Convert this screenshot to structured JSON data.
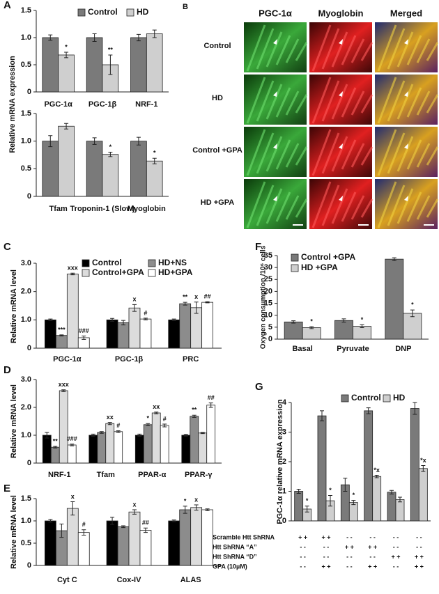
{
  "chart_data": [
    {
      "type": "bar",
      "label": "A",
      "ylabel": "Relative mRNA expression",
      "legend": "upper center",
      "categories": [
        "PGC-1α",
        "PGC-1β",
        "NRF-1"
      ],
      "series": [
        {
          "name": "Control",
          "color": "#7a7a7a",
          "values": [
            1.0,
            1.0,
            1.0
          ],
          "errors": [
            0.05,
            0.07,
            0.06
          ],
          "annotations": [
            null,
            null,
            null
          ]
        },
        {
          "name": "HD",
          "color": "#cfcfcf",
          "values": [
            0.68,
            0.5,
            1.07
          ],
          "errors": [
            0.05,
            0.18,
            0.07
          ],
          "annotations": [
            "*",
            "**",
            null
          ]
        }
      ],
      "ylim": [
        0,
        1.5
      ],
      "yticks": [
        0,
        0.5,
        {
          "value": 1,
          "label": "1.0"
        },
        1.5
      ]
    },
    {
      "type": "bar",
      "categories": [
        "Tfam",
        "Troponin-1 (Slow)",
        "Myoglobin"
      ],
      "series": [
        {
          "color": "#7a7a7a",
          "values": [
            1.0,
            1.0,
            1.0
          ],
          "errors": [
            0.1,
            0.06,
            0.07
          ],
          "annotations": [
            null,
            null,
            null
          ]
        },
        {
          "color": "#cfcfcf",
          "values": [
            1.27,
            0.76,
            0.64
          ],
          "errors": [
            0.05,
            0.04,
            0.05
          ],
          "annotations": [
            null,
            "*",
            "*"
          ]
        }
      ],
      "ylim": [
        0,
        1.5
      ],
      "yticks": [
        0,
        0.5,
        {
          "value": 1,
          "label": "1.0"
        },
        1.5
      ]
    },
    {
      "type": "bar",
      "label": "C",
      "ylabel": "Relative mRNA level",
      "legend": "upper center",
      "categories": [
        "PGC-1α",
        "PGC-1β",
        "PRC"
      ],
      "series": [
        {
          "name": "Control",
          "color": "#000000",
          "values": [
            1.0,
            1.0,
            1.0
          ],
          "errors": [
            0.03,
            0.05,
            0.03
          ],
          "annotations": [
            null,
            null,
            null
          ]
        },
        {
          "name": "HD+NS",
          "color": "#8c8c8c",
          "values": [
            0.45,
            0.9,
            1.57
          ],
          "errors": [
            0.02,
            0.08,
            0.05
          ],
          "annotations": [
            "***",
            null,
            "**"
          ]
        },
        {
          "name": "Control+GPA",
          "color": "#dcdcdc",
          "values": [
            2.62,
            1.42,
            1.43
          ],
          "errors": [
            0.03,
            0.12,
            0.2
          ],
          "annotations": [
            "xxx",
            "x",
            "x"
          ]
        },
        {
          "name": "HD+GPA",
          "color": "#ffffff",
          "values": [
            0.37,
            1.03,
            1.62
          ],
          "errors": [
            0.06,
            0.03,
            0.02
          ],
          "annotations": [
            "###",
            "#",
            "##"
          ]
        }
      ],
      "ylim": [
        0,
        3
      ],
      "yticks": [
        0,
        {
          "value": 1,
          "label": "1.0"
        },
        {
          "value": 2,
          "label": "2.0"
        },
        {
          "value": 3,
          "label": "3.0"
        }
      ]
    },
    {
      "type": "bar",
      "label": "D",
      "ylabel": "Relative mRNA level",
      "categories": [
        "NRF-1",
        "Tfam",
        "PPAR-α",
        "PPAR-γ"
      ],
      "series": [
        {
          "color": "#000000",
          "values": [
            1.0,
            1.0,
            1.0,
            1.0
          ],
          "errors": [
            0.1,
            0.04,
            0.04,
            0.03
          ],
          "annotations": [
            null,
            null,
            null,
            null
          ]
        },
        {
          "color": "#8c8c8c",
          "values": [
            0.57,
            1.1,
            1.38,
            1.68
          ],
          "errors": [
            0.03,
            0.03,
            0.04,
            0.04
          ],
          "annotations": [
            "**",
            null,
            "*",
            "**"
          ]
        },
        {
          "color": "#dcdcdc",
          "values": [
            2.6,
            1.42,
            1.8,
            1.08
          ],
          "errors": [
            0.03,
            0.04,
            0.03,
            0.02
          ],
          "annotations": [
            "xxx",
            "xx",
            "xx",
            null
          ]
        },
        {
          "color": "#ffffff",
          "values": [
            0.65,
            1.13,
            1.35,
            2.08
          ],
          "errors": [
            0.03,
            0.03,
            0.05,
            0.08
          ],
          "annotations": [
            "###",
            "#",
            "#",
            "##"
          ]
        }
      ],
      "ylim": [
        0,
        3
      ],
      "yticks": [
        0,
        {
          "value": 1,
          "label": "1.0"
        },
        {
          "value": 2,
          "label": "2.0"
        },
        {
          "value": 3,
          "label": "3.0"
        }
      ]
    },
    {
      "type": "bar",
      "label": "E",
      "ylabel": "Relative mRNA level",
      "categories": [
        "Cyt C",
        "Cox-IV",
        "ALAS"
      ],
      "series": [
        {
          "color": "#000000",
          "values": [
            1.0,
            1.0,
            1.0
          ],
          "errors": [
            0.03,
            0.08,
            0.02
          ],
          "annotations": [
            null,
            null,
            null
          ]
        },
        {
          "color": "#8c8c8c",
          "values": [
            0.78,
            0.87,
            1.25
          ],
          "errors": [
            0.15,
            0.02,
            0.08
          ],
          "annotations": [
            null,
            null,
            "*"
          ]
        },
        {
          "color": "#dcdcdc",
          "values": [
            1.28,
            1.2,
            1.3
          ],
          "errors": [
            0.15,
            0.05,
            0.06
          ],
          "annotations": [
            "x",
            "x",
            "x"
          ]
        },
        {
          "color": "#ffffff",
          "values": [
            0.74,
            0.79,
            1.25
          ],
          "errors": [
            0.06,
            0.05,
            0.02
          ],
          "annotations": [
            "#",
            "##",
            null
          ]
        }
      ],
      "ylim": [
        0,
        1.5
      ],
      "yticks": [
        0,
        0.5,
        {
          "value": 1,
          "label": "1.0"
        },
        1.5
      ]
    },
    {
      "type": "bar",
      "label": "F",
      "ylabel": "Oxygen consumption /10⁶ cells",
      "legend": "upper left",
      "categories": [
        "Basal",
        "Pyruvate",
        "DNP"
      ],
      "series": [
        {
          "name": "Control +GPA",
          "color": "#7a7a7a",
          "values": [
            7.2,
            7.8,
            33.5
          ],
          "errors": [
            0.5,
            0.7,
            0.6
          ],
          "annotations": [
            null,
            null,
            null
          ]
        },
        {
          "name": "HD +GPA",
          "color": "#cfcfcf",
          "values": [
            4.8,
            5.4,
            10.8
          ],
          "errors": [
            0.4,
            0.6,
            1.4
          ],
          "annotations": [
            "*",
            "*",
            "*"
          ]
        }
      ],
      "ylim": [
        0,
        35
      ],
      "yticks": [
        0,
        5,
        10,
        15,
        20,
        25,
        30,
        35
      ]
    },
    {
      "type": "bar",
      "label": "G",
      "ylabel": "PGC-1α relative mRNA expression",
      "legend": "upper center",
      "categories": [
        null,
        null,
        null,
        null,
        null,
        null
      ],
      "series": [
        {
          "name": "Control",
          "color": "#7a7a7a",
          "values": [
            1.0,
            3.55,
            1.22,
            3.72,
            0.97,
            3.8
          ],
          "errors": [
            0.07,
            0.17,
            0.22,
            0.1,
            0.06,
            0.2
          ],
          "annotations": [
            null,
            null,
            null,
            null,
            null,
            null
          ]
        },
        {
          "name": "HD",
          "color": "#cfcfcf",
          "values": [
            0.4,
            0.68,
            0.62,
            1.5,
            0.72,
            1.77
          ],
          "errors": [
            0.1,
            0.18,
            0.07,
            0.04,
            0.08,
            0.1
          ],
          "annotations": [
            "*",
            "*",
            "*",
            "*x",
            null,
            "*x"
          ]
        }
      ],
      "ylim": [
        0,
        4
      ],
      "yticks": [
        0,
        1,
        2,
        3,
        4
      ],
      "table": [
        {
          "label": "Scramble Htt ShRNA",
          "cells": [
            "+ +",
            "+ +",
            "- -",
            "- -",
            "- -",
            "- -"
          ]
        },
        {
          "label": "Htt ShRNA “A”",
          "cells": [
            "- -",
            "- -",
            "+ +",
            "+ +",
            "- -",
            "- -"
          ]
        },
        {
          "label": "Htt ShRNA “D”",
          "cells": [
            "- -",
            "- -",
            "- -",
            "- -",
            "+ +",
            "+ +"
          ]
        },
        {
          "label": "GPA (10µM)",
          "cells": [
            "- -",
            "+ +",
            "- -",
            "+ +",
            "- -",
            "+ +"
          ]
        }
      ]
    }
  ],
  "image_panel": {
    "label": "B",
    "columns": [
      "PGC-1α",
      "Myoglobin",
      "Merged"
    ],
    "rows": [
      "Control",
      "HD",
      "Control +GPA",
      "HD +GPA"
    ]
  }
}
